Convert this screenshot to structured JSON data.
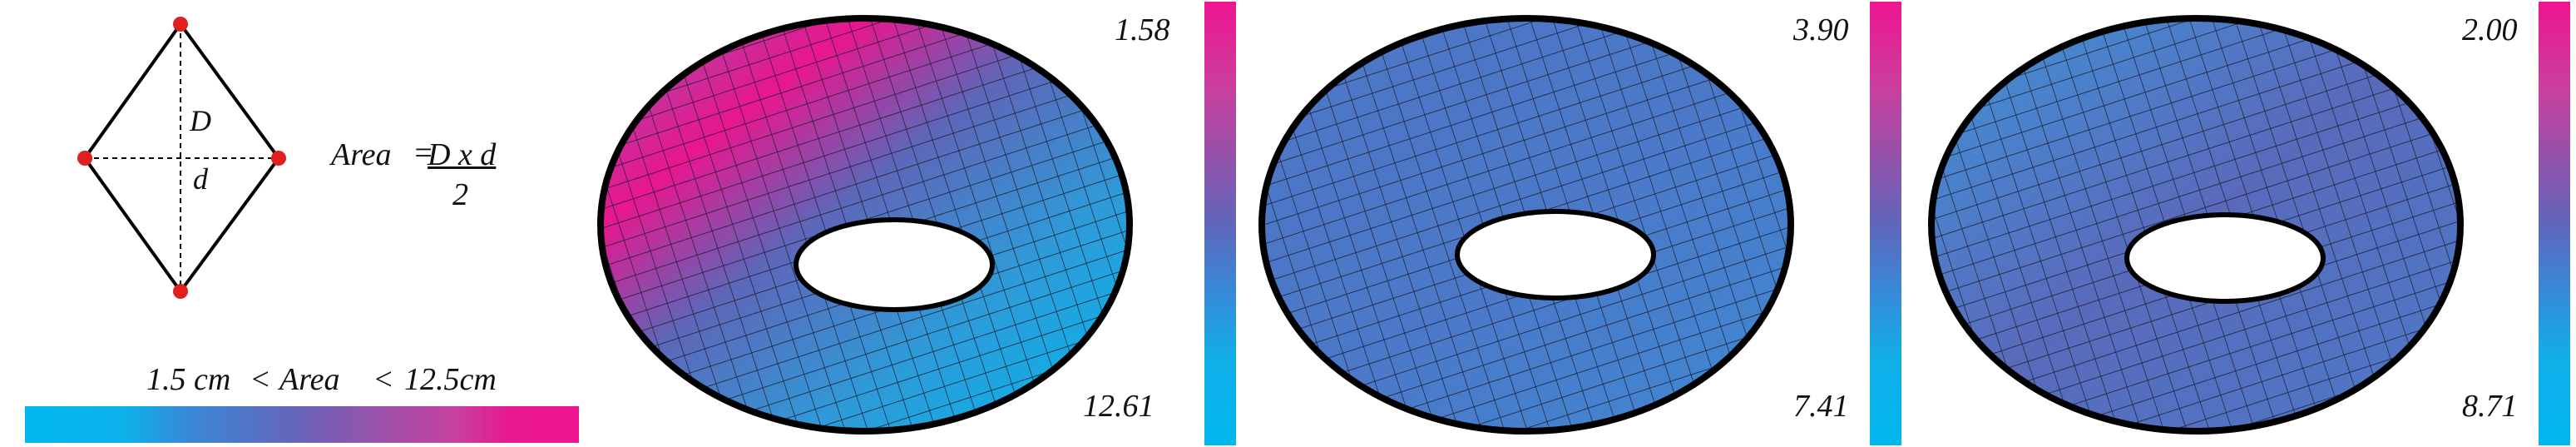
{
  "formula": {
    "area_label": "Area",
    "equals": "=",
    "numerator": "D x d",
    "denominator": "2",
    "D_label": "D",
    "d_label": "d"
  },
  "legend": {
    "min_value": "1.5 cm",
    "lt1": "<",
    "area": "Area",
    "lt2": "<",
    "max_value": "12.5cm"
  },
  "panels": [
    {
      "top_value": "1.58",
      "bottom_value": "12.61"
    },
    {
      "top_value": "3.90",
      "bottom_value": "7.41"
    },
    {
      "top_value": "2.00",
      "bottom_value": "8.71"
    }
  ],
  "colors": {
    "low": "#00b7ee",
    "mid": "#6a63b8",
    "high": "#ee1590",
    "vertex": "#e02020",
    "outline": "#000000"
  }
}
